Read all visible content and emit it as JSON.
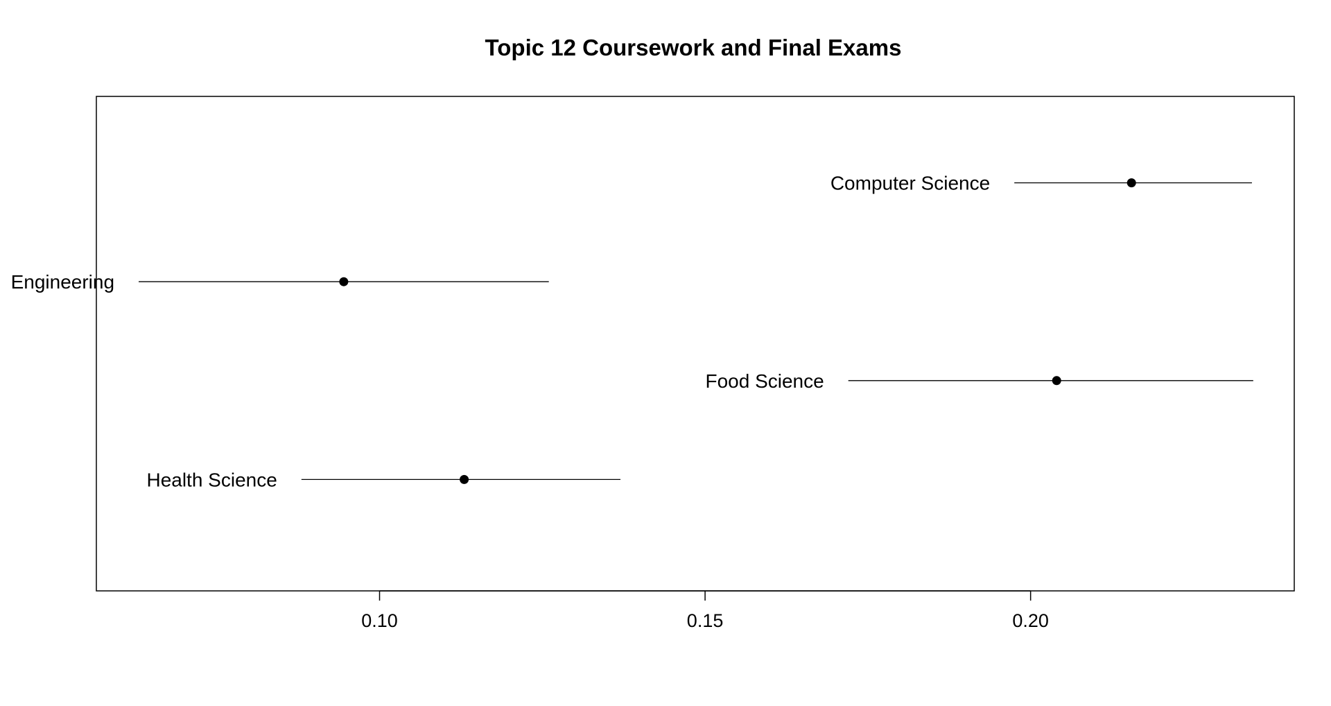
{
  "chart_data": {
    "type": "scatter",
    "title": "Topic 12 Coursework and Final Exams",
    "xlabel": "",
    "ylabel": "",
    "xlim": [
      0.0565,
      0.2405
    ],
    "grid": false,
    "legend": "none",
    "x_ticks": [
      0.1,
      0.15,
      0.2
    ],
    "x_tick_labels": [
      "0.10",
      "0.15",
      "0.20"
    ],
    "points": [
      {
        "label": "Computer Science",
        "estimate": 0.2155,
        "lower": 0.1975,
        "upper": 0.234
      },
      {
        "label": "Engineering",
        "estimate": 0.0945,
        "lower": 0.063,
        "upper": 0.126
      },
      {
        "label": "Food Science",
        "estimate": 0.204,
        "lower": 0.172,
        "upper": 0.2342
      },
      {
        "label": "Health Science",
        "estimate": 0.113,
        "lower": 0.088,
        "upper": 0.137
      }
    ]
  }
}
